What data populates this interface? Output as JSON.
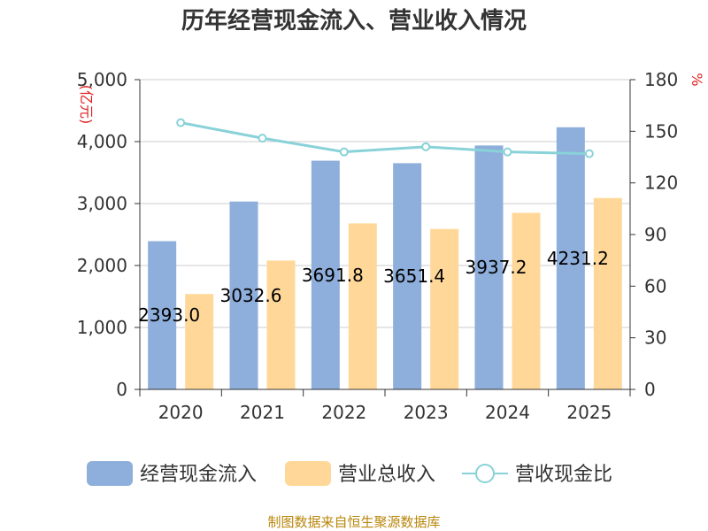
{
  "chart_data": {
    "type": "bar",
    "title": "历年经营现金流入、营业收入情况",
    "categories": [
      "2020",
      "2021",
      "2022",
      "2023",
      "2024",
      "2025"
    ],
    "series": [
      {
        "name": "经营现金流入",
        "type": "bar",
        "axis": "left",
        "color": "#8eaedb",
        "values": [
          2393.0,
          3032.6,
          3691.8,
          3651.4,
          3937.2,
          4231.2
        ]
      },
      {
        "name": "营业总收入",
        "type": "bar",
        "axis": "left",
        "color": "#ffd899",
        "values": [
          1540,
          2080,
          2680,
          2590,
          2850,
          3090
        ]
      },
      {
        "name": "营收现金比",
        "type": "line",
        "axis": "right",
        "color": "#88d2d8",
        "values": [
          155,
          146,
          138,
          141,
          138,
          137
        ]
      }
    ],
    "data_labels": [
      "2393.0",
      "3032.6",
      "3691.8",
      "3651.4",
      "3937.2",
      "4231.2"
    ],
    "y_left": {
      "min": 0,
      "max": 5000,
      "ticks": [
        "0",
        "1,000",
        "2,000",
        "3,000",
        "4,000",
        "5,000"
      ],
      "unit": "(亿元)"
    },
    "y_right": {
      "min": 0,
      "max": 180,
      "ticks": [
        "0",
        "30",
        "60",
        "90",
        "120",
        "150",
        "180"
      ],
      "unit": "%"
    },
    "legend": [
      "经营现金流入",
      "营业总收入",
      "营收现金比"
    ],
    "legend_position": "bottom",
    "grid": true,
    "source": "制图数据来自恒生聚源数据库"
  }
}
